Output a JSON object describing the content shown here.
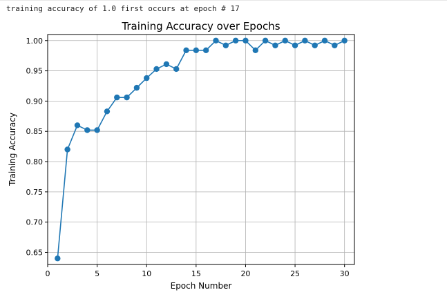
{
  "output": {
    "text": "training accuracy of 1.0 first occurs at epoch # 17"
  },
  "chart_data": {
    "type": "line",
    "title": "Training Accuracy over Epochs",
    "xlabel": "Epoch Number",
    "ylabel": "Training Accuracy",
    "xlim": [
      0,
      31
    ],
    "ylim": [
      0.63,
      1.01
    ],
    "xticks": [
      0,
      5,
      10,
      15,
      20,
      25,
      30
    ],
    "yticks": [
      0.65,
      0.7,
      0.75,
      0.8,
      0.85,
      0.9,
      0.95,
      1.0
    ],
    "xtick_labels": [
      "0",
      "5",
      "10",
      "15",
      "20",
      "25",
      "30"
    ],
    "ytick_labels": [
      "0.65",
      "0.70",
      "0.75",
      "0.80",
      "0.85",
      "0.90",
      "0.95",
      "1.00"
    ],
    "grid": true,
    "series": [
      {
        "color": "#1f77b4",
        "marker": "circle",
        "x": [
          1,
          2,
          3,
          4,
          5,
          6,
          7,
          8,
          9,
          10,
          11,
          12,
          13,
          14,
          15,
          16,
          17,
          18,
          19,
          20,
          21,
          22,
          23,
          24,
          25,
          26,
          27,
          28,
          29,
          30
        ],
        "values": [
          0.64,
          0.82,
          0.86,
          0.852,
          0.852,
          0.883,
          0.906,
          0.906,
          0.922,
          0.938,
          0.953,
          0.961,
          0.953,
          0.984,
          0.984,
          0.984,
          1.0,
          0.992,
          1.0,
          1.0,
          0.984,
          1.0,
          0.992,
          1.0,
          0.992,
          1.0,
          0.992,
          1.0,
          0.992,
          1.0
        ]
      }
    ]
  }
}
